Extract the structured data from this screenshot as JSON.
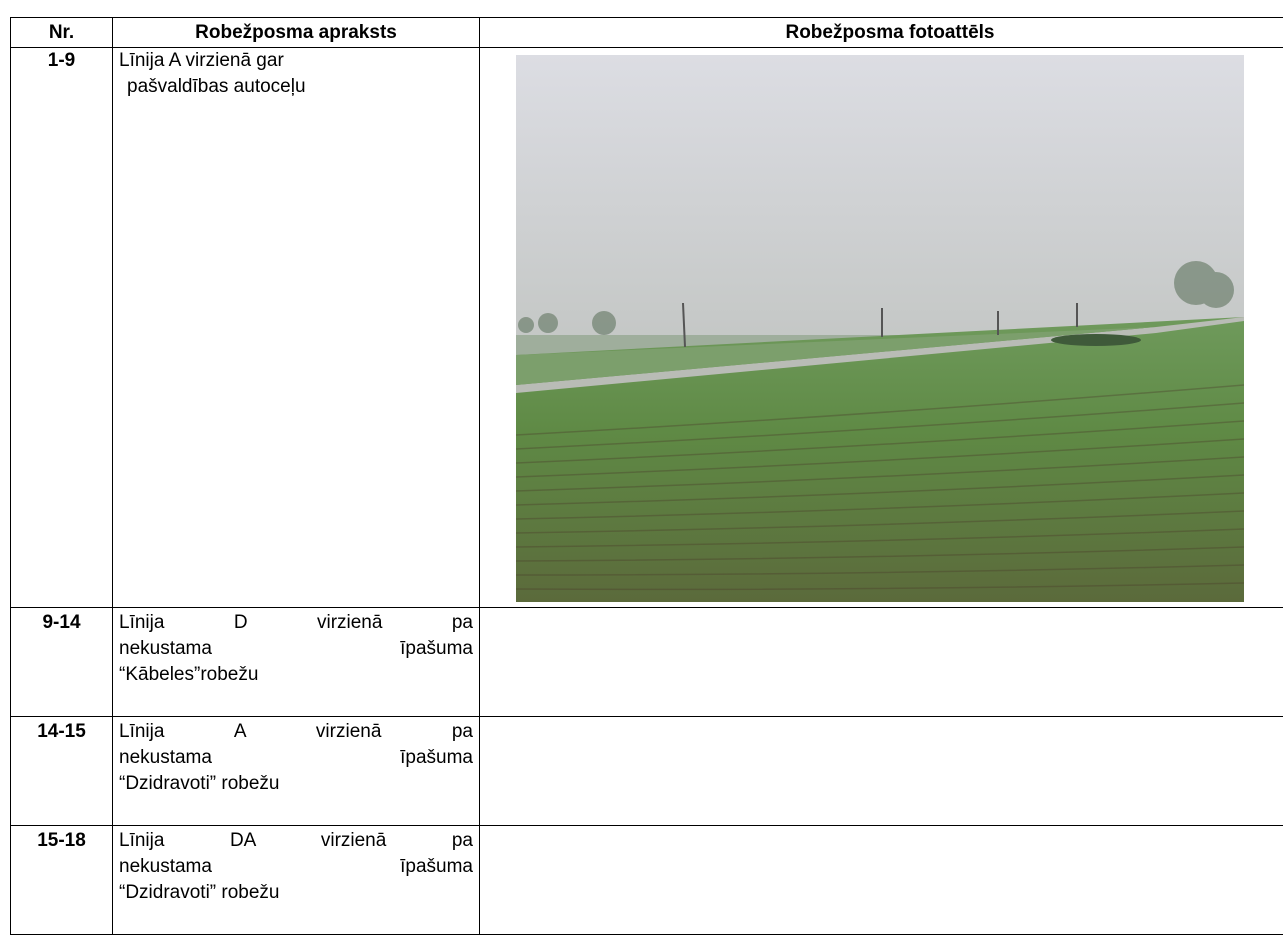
{
  "table": {
    "header": [
      "Nr.",
      "Robežposma apraksts",
      "Robežposma fotoattēls"
    ],
    "rows": [
      {
        "nr": "1-9",
        "description": [
          "Līnija A virzienā gar",
          "pašvaldības autoceļu"
        ]
      },
      {
        "nr": "9-14",
        "description": [
          "Līnija D virzienā pa",
          "nekustama īpašuma",
          "“Kābeles”robežu"
        ]
      },
      {
        "nr": "14-15",
        "description": [
          "Līnija A virzienā pa",
          "nekustama īpašuma",
          "“Dzidravoti” robežu"
        ]
      },
      {
        "nr": "15-18",
        "description": [
          "Līnija DA virzienā pa",
          "nekustama īpašuma",
          "“Dzidravoti” robežu"
        ]
      }
    ]
  }
}
